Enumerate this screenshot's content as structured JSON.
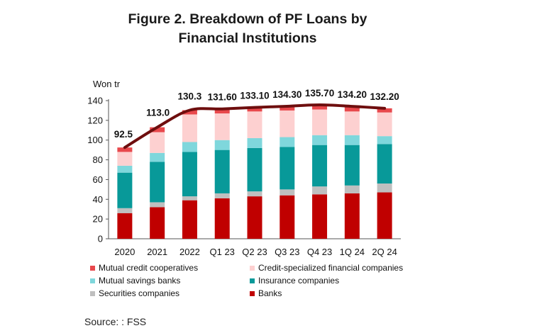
{
  "title_line1": "Figure 2. Breakdown of PF Loans by",
  "title_line2": "Financial Institutions",
  "unit": "Won tr",
  "source": "Source: : FSS",
  "colors": {
    "banks": "#c00000",
    "securities": "#bfbfbf",
    "insurance": "#089999",
    "mutual_savings": "#7fd7dc",
    "credit_specialized": "#fdd0d0",
    "mutual_credit": "#e8484c",
    "total_line": "#6e0e0e"
  },
  "legend": [
    {
      "key": "mutual_credit",
      "label": "Mutual credit cooperatives"
    },
    {
      "key": "credit_specialized",
      "label": "Credit-specialized financial companies"
    },
    {
      "key": "mutual_savings",
      "label": "Mutual savings banks"
    },
    {
      "key": "insurance",
      "label": "Insurance companies"
    },
    {
      "key": "securities",
      "label": "Securities companies"
    },
    {
      "key": "banks",
      "label": "Banks"
    }
  ],
  "chart_data": {
    "type": "bar",
    "stacked": true,
    "categories": [
      "2020",
      "2021",
      "2022",
      "Q1 23",
      "Q2 23",
      "Q3 23",
      "Q4 23",
      "1Q 24",
      "2Q 24"
    ],
    "ylim": [
      0,
      140
    ],
    "yticks": [
      0,
      20,
      40,
      60,
      80,
      100,
      120,
      140
    ],
    "ylabel": "Won tr",
    "series": [
      {
        "name": "Banks",
        "key": "banks",
        "values": [
          26,
          32,
          39,
          41,
          43,
          44,
          45,
          46,
          47
        ]
      },
      {
        "name": "Securities companies",
        "key": "securities",
        "values": [
          5,
          5,
          4,
          5,
          5,
          6,
          8,
          8,
          9
        ]
      },
      {
        "name": "Insurance companies",
        "key": "insurance",
        "values": [
          36,
          41,
          45,
          44,
          44,
          43,
          42,
          41,
          40
        ]
      },
      {
        "name": "Mutual savings banks",
        "key": "mutual_savings",
        "values": [
          7,
          9,
          10,
          10,
          10,
          10,
          10,
          10,
          8
        ]
      },
      {
        "name": "Credit-specialized financial companies",
        "key": "credit_specialized",
        "values": [
          14,
          21,
          28,
          27,
          27,
          27,
          26,
          24,
          24
        ]
      },
      {
        "name": "Mutual credit cooperatives",
        "key": "mutual_credit",
        "values": [
          4.5,
          5,
          4.3,
          4.6,
          4.1,
          4.3,
          4.7,
          5.2,
          4.2
        ]
      }
    ],
    "total_line": {
      "values": [
        92.5,
        113.0,
        130.3,
        131.6,
        133.1,
        134.3,
        135.7,
        134.2,
        132.2
      ],
      "labels": [
        "92.5",
        "113.0",
        "130.3",
        "131.60",
        "133.10",
        "134.30",
        "135.70",
        "134.20",
        "132.20"
      ]
    },
    "legend_position": "bottom"
  }
}
